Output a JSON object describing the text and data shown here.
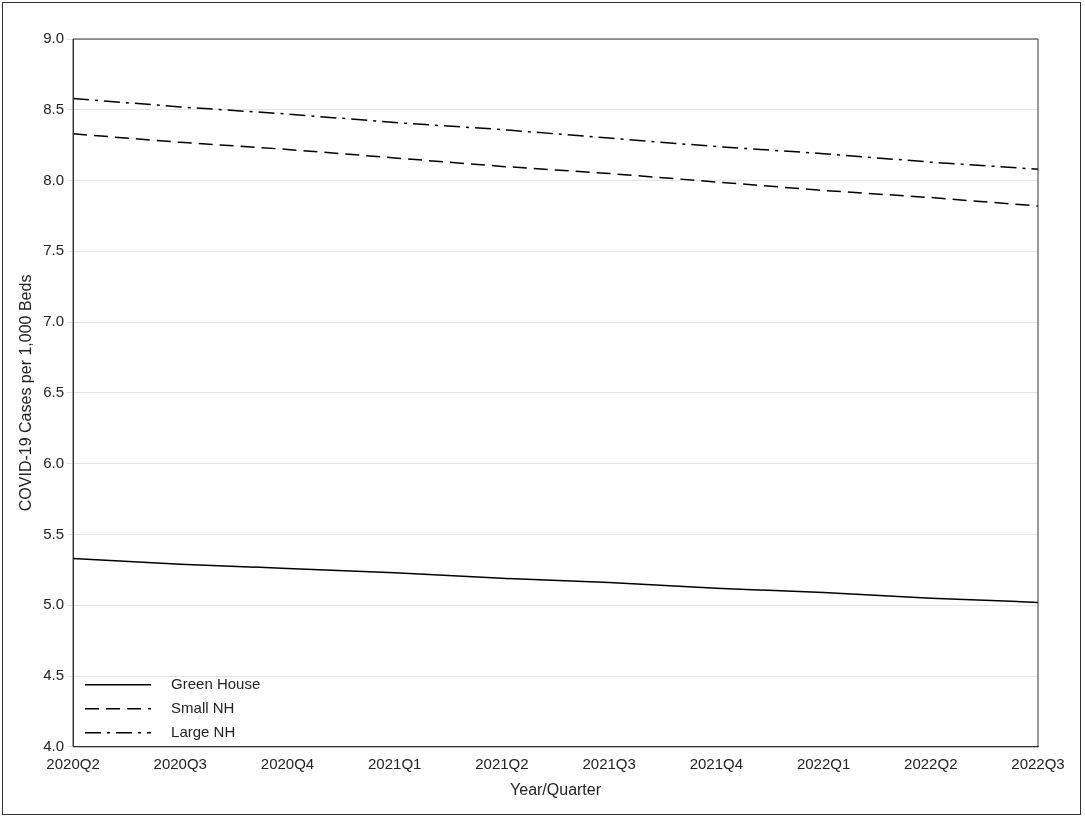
{
  "chart_data": {
    "type": "line",
    "xlabel": "Year/Quarter",
    "ylabel": "COVID-19 Cases per 1,000 Beds",
    "categories": [
      "2020Q2",
      "2020Q3",
      "2020Q4",
      "2021Q1",
      "2021Q2",
      "2021Q3",
      "2021Q4",
      "2022Q1",
      "2022Q2",
      "2022Q3"
    ],
    "series": [
      {
        "name": "Green House",
        "color": "#000000",
        "line_style": "solid",
        "values": [
          5.33,
          5.29,
          5.26,
          5.23,
          5.19,
          5.16,
          5.12,
          5.09,
          5.05,
          5.02
        ]
      },
      {
        "name": "Small NH",
        "color": "#000000",
        "line_style": "dashed",
        "values": [
          8.33,
          8.27,
          8.22,
          8.16,
          8.1,
          8.05,
          7.99,
          7.93,
          7.88,
          7.82
        ]
      },
      {
        "name": "Large NH",
        "color": "#000000",
        "line_style": "dashdot",
        "values": [
          8.58,
          8.52,
          8.47,
          8.41,
          8.36,
          8.3,
          8.24,
          8.19,
          8.13,
          8.08
        ]
      }
    ],
    "ylim": [
      4.0,
      9.0
    ],
    "yticks": [
      {
        "value": 4,
        "label": "4.0"
      },
      {
        "value": 4.5,
        "label": "4.5"
      },
      {
        "value": 5,
        "label": "5.0"
      },
      {
        "value": 5.5,
        "label": "5.5"
      },
      {
        "value": 6,
        "label": "6.0"
      },
      {
        "value": 6.5,
        "label": "6.5"
      },
      {
        "value": 7,
        "label": "7.0"
      },
      {
        "value": 7.5,
        "label": "7.5"
      },
      {
        "value": 8,
        "label": "8.0"
      },
      {
        "value": 8.5,
        "label": "8.5"
      },
      {
        "value": 9,
        "label": "9.0"
      }
    ],
    "grid": "y",
    "legend": "bottom left",
    "marker": "none"
  }
}
